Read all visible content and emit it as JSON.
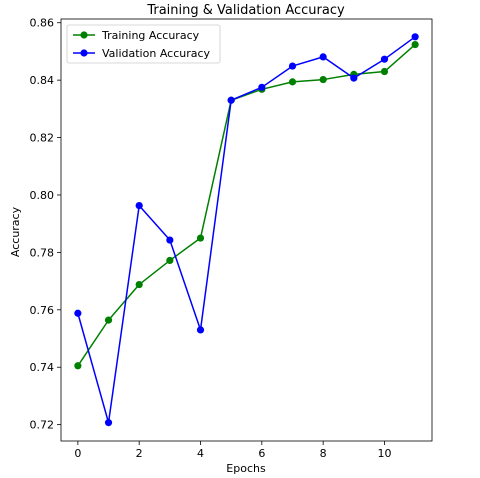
{
  "chart_data": {
    "type": "line",
    "title": "Training & Validation Accuracy",
    "xlabel": "Epochs",
    "ylabel": "Accuracy",
    "xlim": [
      -0.55,
      11.55
    ],
    "ylim": [
      0.7143,
      0.8613
    ],
    "xticks": [
      0,
      2,
      4,
      6,
      8,
      10
    ],
    "yticks": [
      0.72,
      0.74,
      0.76,
      0.78,
      0.8,
      0.82,
      0.84,
      0.86
    ],
    "ytick_labels": [
      "0.72",
      "0.74",
      "0.76",
      "0.78",
      "0.80",
      "0.82",
      "0.84",
      "0.86"
    ],
    "grid": false,
    "legend_position": "upper-left",
    "x": [
      0,
      1,
      2,
      3,
      4,
      5,
      6,
      7,
      8,
      9,
      10,
      11
    ],
    "series": [
      {
        "name": "Training Accuracy",
        "color": "#008000",
        "marker": "circle",
        "values": [
          0.7405,
          0.7564,
          0.7688,
          0.7772,
          0.785,
          0.833,
          0.8368,
          0.8394,
          0.8402,
          0.842,
          0.843,
          0.8524
        ]
      },
      {
        "name": "Validation Accuracy",
        "color": "#0000ff",
        "marker": "circle",
        "values": [
          0.7588,
          0.7207,
          0.7963,
          0.7843,
          0.753,
          0.833,
          0.8375,
          0.8449,
          0.8481,
          0.8407,
          0.8473,
          0.8551
        ]
      }
    ]
  }
}
